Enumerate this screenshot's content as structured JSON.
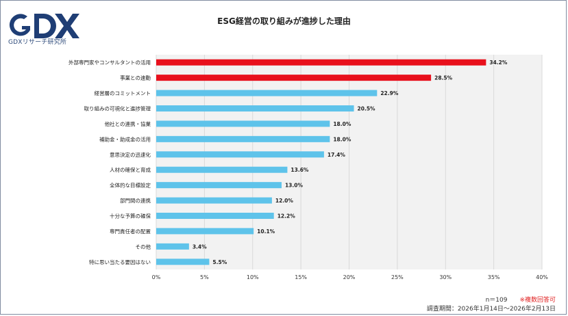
{
  "logo": {
    "mark": "GDX",
    "name": "GDXリサーチ研究所"
  },
  "footer": {
    "n": "n＝109",
    "note": "※複数回答可",
    "period": "調査期間：2026年1月14日〜2026年2月13日"
  },
  "colors": {
    "highlight": "#e8101c",
    "normal": "#5ec3ea",
    "grid": "#d9d9d9",
    "plot_bg": "#f2f2f2"
  },
  "chart_data": {
    "type": "bar",
    "orientation": "horizontal",
    "title": "ESG経営の取り組みが進捗した理由",
    "categories": [
      "外部専門家やコンサルタントの活用",
      "事業との連動",
      "経営層のコミットメント",
      "取り組みの可視化と進捗管理",
      "他社との連携・協業",
      "補助金・助成金の活用",
      "意思決定の迅速化",
      "人材の確保と育成",
      "全体的な目標設定",
      "部門間の連携",
      "十分な予算の確保",
      "専門責任者の配置",
      "その他",
      "特に思い当たる要因はない"
    ],
    "values": [
      34.2,
      28.5,
      22.9,
      20.5,
      18.0,
      18.0,
      17.4,
      13.6,
      13.0,
      12.0,
      12.2,
      10.1,
      3.4,
      5.5
    ],
    "value_labels": [
      "34.2%",
      "28.5%",
      "22.9%",
      "20.5%",
      "18.0%",
      "18.0%",
      "17.4%",
      "13.6%",
      "13.0%",
      "12.0%",
      "12.2%",
      "10.1%",
      "3.4%",
      "5.5%"
    ],
    "highlighted": [
      true,
      true,
      false,
      false,
      false,
      false,
      false,
      false,
      false,
      false,
      false,
      false,
      false,
      false
    ],
    "xlim": [
      0,
      40
    ],
    "xticks": [
      0,
      5,
      10,
      15,
      20,
      25,
      30,
      35,
      40
    ],
    "xtick_labels": [
      "0%",
      "5%",
      "10%",
      "15%",
      "20%",
      "25%",
      "30%",
      "35%",
      "40%"
    ],
    "grid": true
  }
}
